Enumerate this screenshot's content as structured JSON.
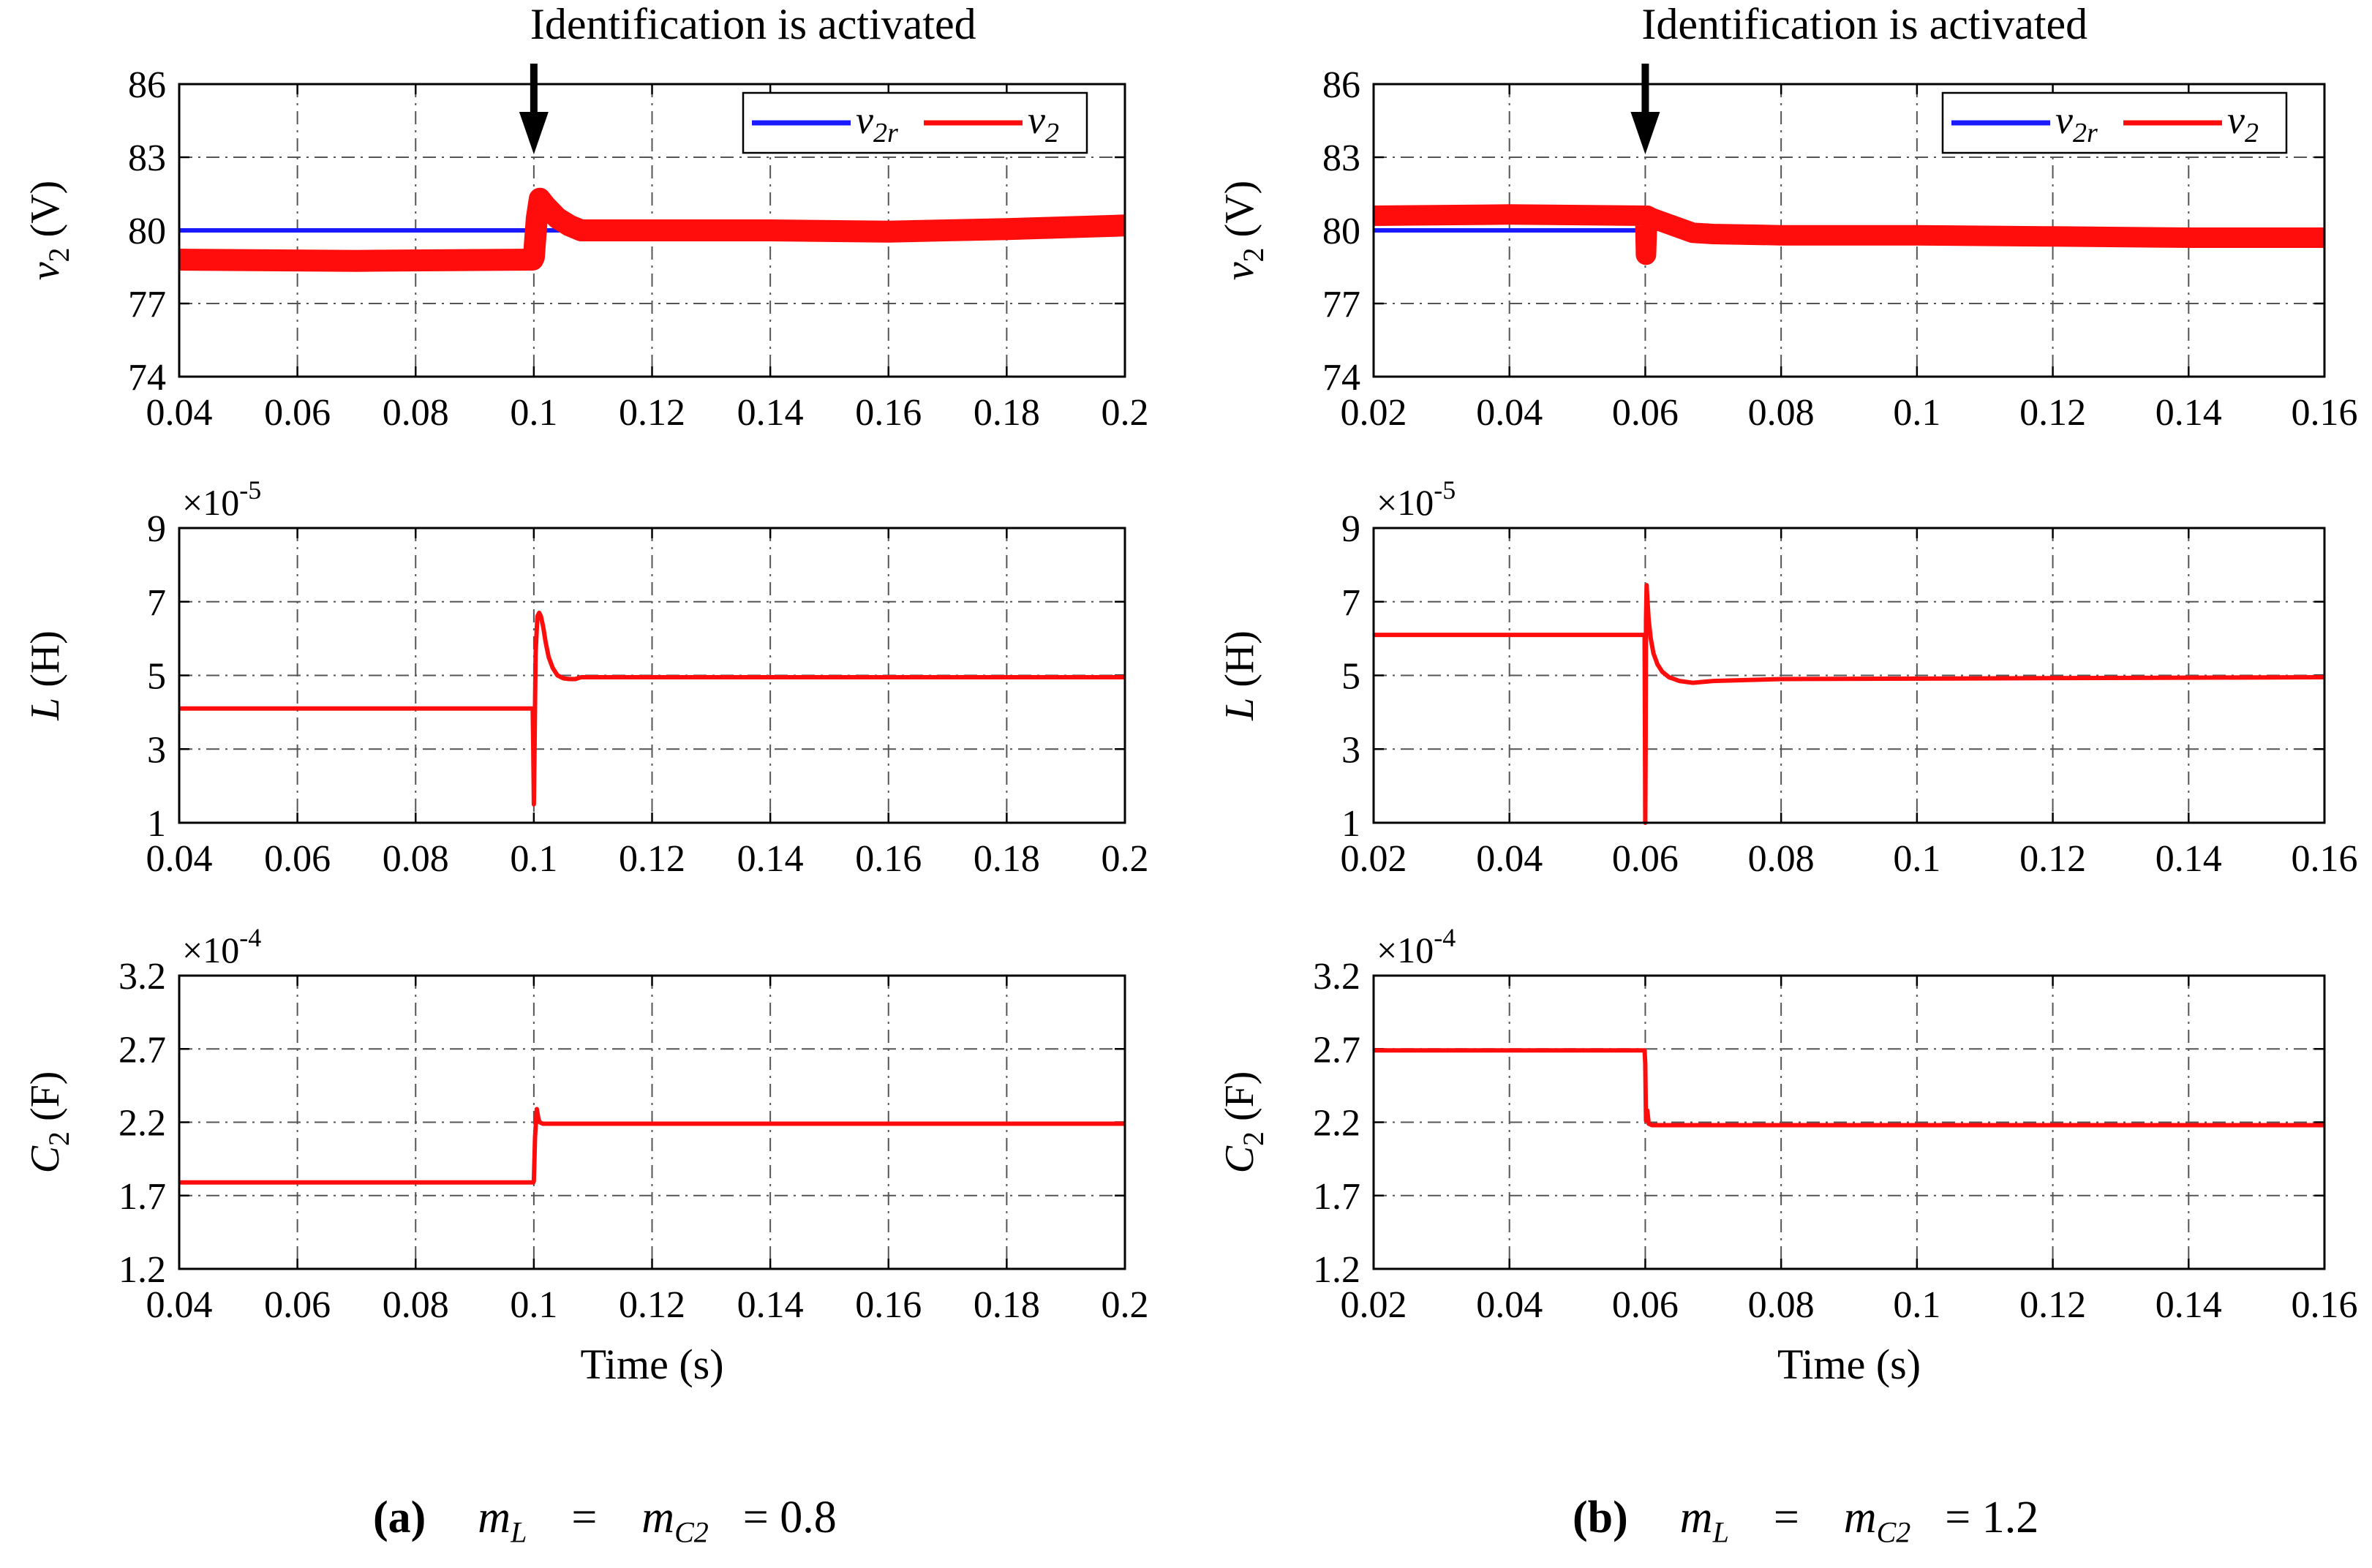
{
  "figure": {
    "annotation": "Identification is activated",
    "x_axis_label": "Time (s)",
    "colors": {
      "reference": "#1a1aff",
      "signal": "#ff0d0d",
      "grid": "#555555"
    }
  },
  "captions": [
    {
      "tag": "(a)",
      "m1": "m",
      "m1sub": "L",
      "eq": "=",
      "m2": "m",
      "m2sub": "C2",
      "value": "= 0.8"
    },
    {
      "tag": "(b)",
      "m1": "m",
      "m1sub": "L",
      "eq": "=",
      "m2": "m",
      "m2sub": "C2",
      "value": "= 1.2"
    }
  ],
  "chart_data": [
    {
      "type": "line",
      "panel": "a",
      "row": "voltage",
      "ylabel": {
        "main": "v",
        "sub": "2",
        "unit": "(V)"
      },
      "xlim": [
        0.04,
        0.2
      ],
      "ylim": [
        74,
        86
      ],
      "x_ticks": [
        "0.04",
        "0.06",
        "0.08",
        "0.1",
        "0.12",
        "0.14",
        "0.16",
        "0.18",
        "0.2"
      ],
      "y_ticks": [
        "74",
        "77",
        "80",
        "83",
        "86"
      ],
      "grid": true,
      "legend_position": "top-right",
      "legend": [
        {
          "main": "v",
          "sub": "2r",
          "color": "#1a1aff"
        },
        {
          "main": "v",
          "sub": "2",
          "color": "#ff0d0d"
        }
      ],
      "event_x": 0.1,
      "series": [
        {
          "name": "v2r",
          "color": "#1a1aff",
          "x": [
            0.04,
            0.1,
            0.2
          ],
          "y": [
            80,
            80,
            80
          ]
        },
        {
          "name": "v2",
          "color": "#ff0d0d",
          "band": 0.45,
          "x": [
            0.04,
            0.07,
            0.0998,
            0.1,
            0.1005,
            0.101,
            0.102,
            0.104,
            0.106,
            0.108,
            0.12,
            0.14,
            0.16,
            0.18,
            0.2
          ],
          "y": [
            78.8,
            78.75,
            78.8,
            78.9,
            80.5,
            81.3,
            81.0,
            80.5,
            80.2,
            80.0,
            80.0,
            80.0,
            79.95,
            80.05,
            80.2
          ]
        }
      ]
    },
    {
      "type": "line",
      "panel": "a",
      "row": "inductance",
      "ylabel": {
        "main": "L",
        "sub": "",
        "unit": "(H)"
      },
      "exponent": {
        "base": "×10",
        "power": "-5"
      },
      "xlim": [
        0.04,
        0.2
      ],
      "ylim": [
        1,
        9
      ],
      "x_ticks": [
        "0.04",
        "0.06",
        "0.08",
        "0.1",
        "0.12",
        "0.14",
        "0.16",
        "0.18",
        "0.2"
      ],
      "y_ticks": [
        "1",
        "3",
        "5",
        "7",
        "9"
      ],
      "grid": true,
      "series": [
        {
          "name": "L",
          "color": "#ff0d0d",
          "x": [
            0.04,
            0.0998,
            0.0999,
            0.1,
            0.1001,
            0.1003,
            0.1006,
            0.1009,
            0.1012,
            0.1016,
            0.102,
            0.1025,
            0.1032,
            0.104,
            0.105,
            0.106,
            0.107,
            0.108,
            0.11,
            0.12,
            0.2
          ],
          "y": [
            4.1,
            4.1,
            3.0,
            1.5,
            2.8,
            5.6,
            6.6,
            6.7,
            6.6,
            6.3,
            5.9,
            5.5,
            5.2,
            5.0,
            4.92,
            4.9,
            4.9,
            4.95,
            4.95,
            4.95,
            4.95
          ]
        }
      ]
    },
    {
      "type": "line",
      "panel": "a",
      "row": "capacitance",
      "ylabel": {
        "main": "C",
        "sub": "2",
        "unit": "(F)"
      },
      "exponent": {
        "base": "×10",
        "power": "-4"
      },
      "xlim": [
        0.04,
        0.2
      ],
      "ylim": [
        1.2,
        3.2
      ],
      "x_ticks": [
        "0.04",
        "0.06",
        "0.08",
        "0.1",
        "0.12",
        "0.14",
        "0.16",
        "0.18",
        "0.2"
      ],
      "y_ticks": [
        "1.2",
        "1.7",
        "2.2",
        "2.7",
        "3.2"
      ],
      "grid": true,
      "series": [
        {
          "name": "C2",
          "color": "#ff0d0d",
          "x": [
            0.04,
            0.0999,
            0.1,
            0.1002,
            0.1005,
            0.1008,
            0.101,
            0.1015,
            0.2
          ],
          "y": [
            1.79,
            1.79,
            1.8,
            2.1,
            2.29,
            2.22,
            2.2,
            2.19,
            2.19
          ]
        }
      ]
    },
    {
      "type": "line",
      "panel": "b",
      "row": "voltage",
      "ylabel": {
        "main": "v",
        "sub": "2",
        "unit": "(V)"
      },
      "xlim": [
        0.02,
        0.16
      ],
      "ylim": [
        74,
        86
      ],
      "x_ticks": [
        "0.02",
        "0.04",
        "0.06",
        "0.08",
        "0.1",
        "0.12",
        "0.14",
        "0.16"
      ],
      "y_ticks": [
        "74",
        "77",
        "80",
        "83",
        "86"
      ],
      "grid": true,
      "legend_position": "top-right",
      "legend": [
        {
          "main": "v",
          "sub": "2r",
          "color": "#1a1aff"
        },
        {
          "main": "v",
          "sub": "2",
          "color": "#ff0d0d"
        }
      ],
      "event_x": 0.06,
      "series": [
        {
          "name": "v2r",
          "color": "#1a1aff",
          "x": [
            0.02,
            0.06
          ],
          "y": [
            80,
            80
          ]
        },
        {
          "name": "v2",
          "color": "#ff0d0d",
          "band": 0.42,
          "x": [
            0.02,
            0.04,
            0.0599,
            0.06,
            0.0601,
            0.0603,
            0.061,
            0.064,
            0.067,
            0.07,
            0.08,
            0.1,
            0.12,
            0.14,
            0.16
          ],
          "y": [
            80.6,
            80.65,
            80.6,
            80.5,
            79.0,
            80.6,
            80.5,
            80.2,
            79.9,
            79.85,
            79.8,
            79.8,
            79.75,
            79.7,
            79.7
          ]
        }
      ]
    },
    {
      "type": "line",
      "panel": "b",
      "row": "inductance",
      "ylabel": {
        "main": "L",
        "sub": "",
        "unit": "(H)"
      },
      "exponent": {
        "base": "×10",
        "power": "-5"
      },
      "xlim": [
        0.02,
        0.16
      ],
      "ylim": [
        1,
        9
      ],
      "x_ticks": [
        "0.02",
        "0.04",
        "0.06",
        "0.08",
        "0.1",
        "0.12",
        "0.14",
        "0.16"
      ],
      "y_ticks": [
        "1",
        "3",
        "5",
        "7",
        "9"
      ],
      "grid": true,
      "series": [
        {
          "name": "L",
          "color": "#ff0d0d",
          "x": [
            0.02,
            0.0599,
            0.05995,
            0.06,
            0.06005,
            0.0601,
            0.0602,
            0.0603,
            0.0605,
            0.0608,
            0.0612,
            0.0618,
            0.0625,
            0.0635,
            0.065,
            0.067,
            0.07,
            0.08,
            0.16
          ],
          "y": [
            6.1,
            6.1,
            3.5,
            1.0,
            3.0,
            6.5,
            7.45,
            7.1,
            6.5,
            6.0,
            5.6,
            5.3,
            5.1,
            4.95,
            4.85,
            4.8,
            4.85,
            4.9,
            4.95
          ]
        }
      ]
    },
    {
      "type": "line",
      "panel": "b",
      "row": "capacitance",
      "ylabel": {
        "main": "C",
        "sub": "2",
        "unit": "(F)"
      },
      "exponent": {
        "base": "×10",
        "power": "-4"
      },
      "xlim": [
        0.02,
        0.16
      ],
      "ylim": [
        1.2,
        3.2
      ],
      "x_ticks": [
        "0.02",
        "0.04",
        "0.06",
        "0.08",
        "0.1",
        "0.12",
        "0.14",
        "0.16"
      ],
      "y_ticks": [
        "1.2",
        "1.7",
        "2.2",
        "2.7",
        "3.2"
      ],
      "grid": true,
      "series": [
        {
          "name": "C2",
          "color": "#ff0d0d",
          "x": [
            0.02,
            0.0599,
            0.06,
            0.0601,
            0.0603,
            0.0605,
            0.061,
            0.16
          ],
          "y": [
            2.69,
            2.69,
            2.6,
            2.21,
            2.28,
            2.19,
            2.18,
            2.18
          ]
        }
      ]
    }
  ]
}
